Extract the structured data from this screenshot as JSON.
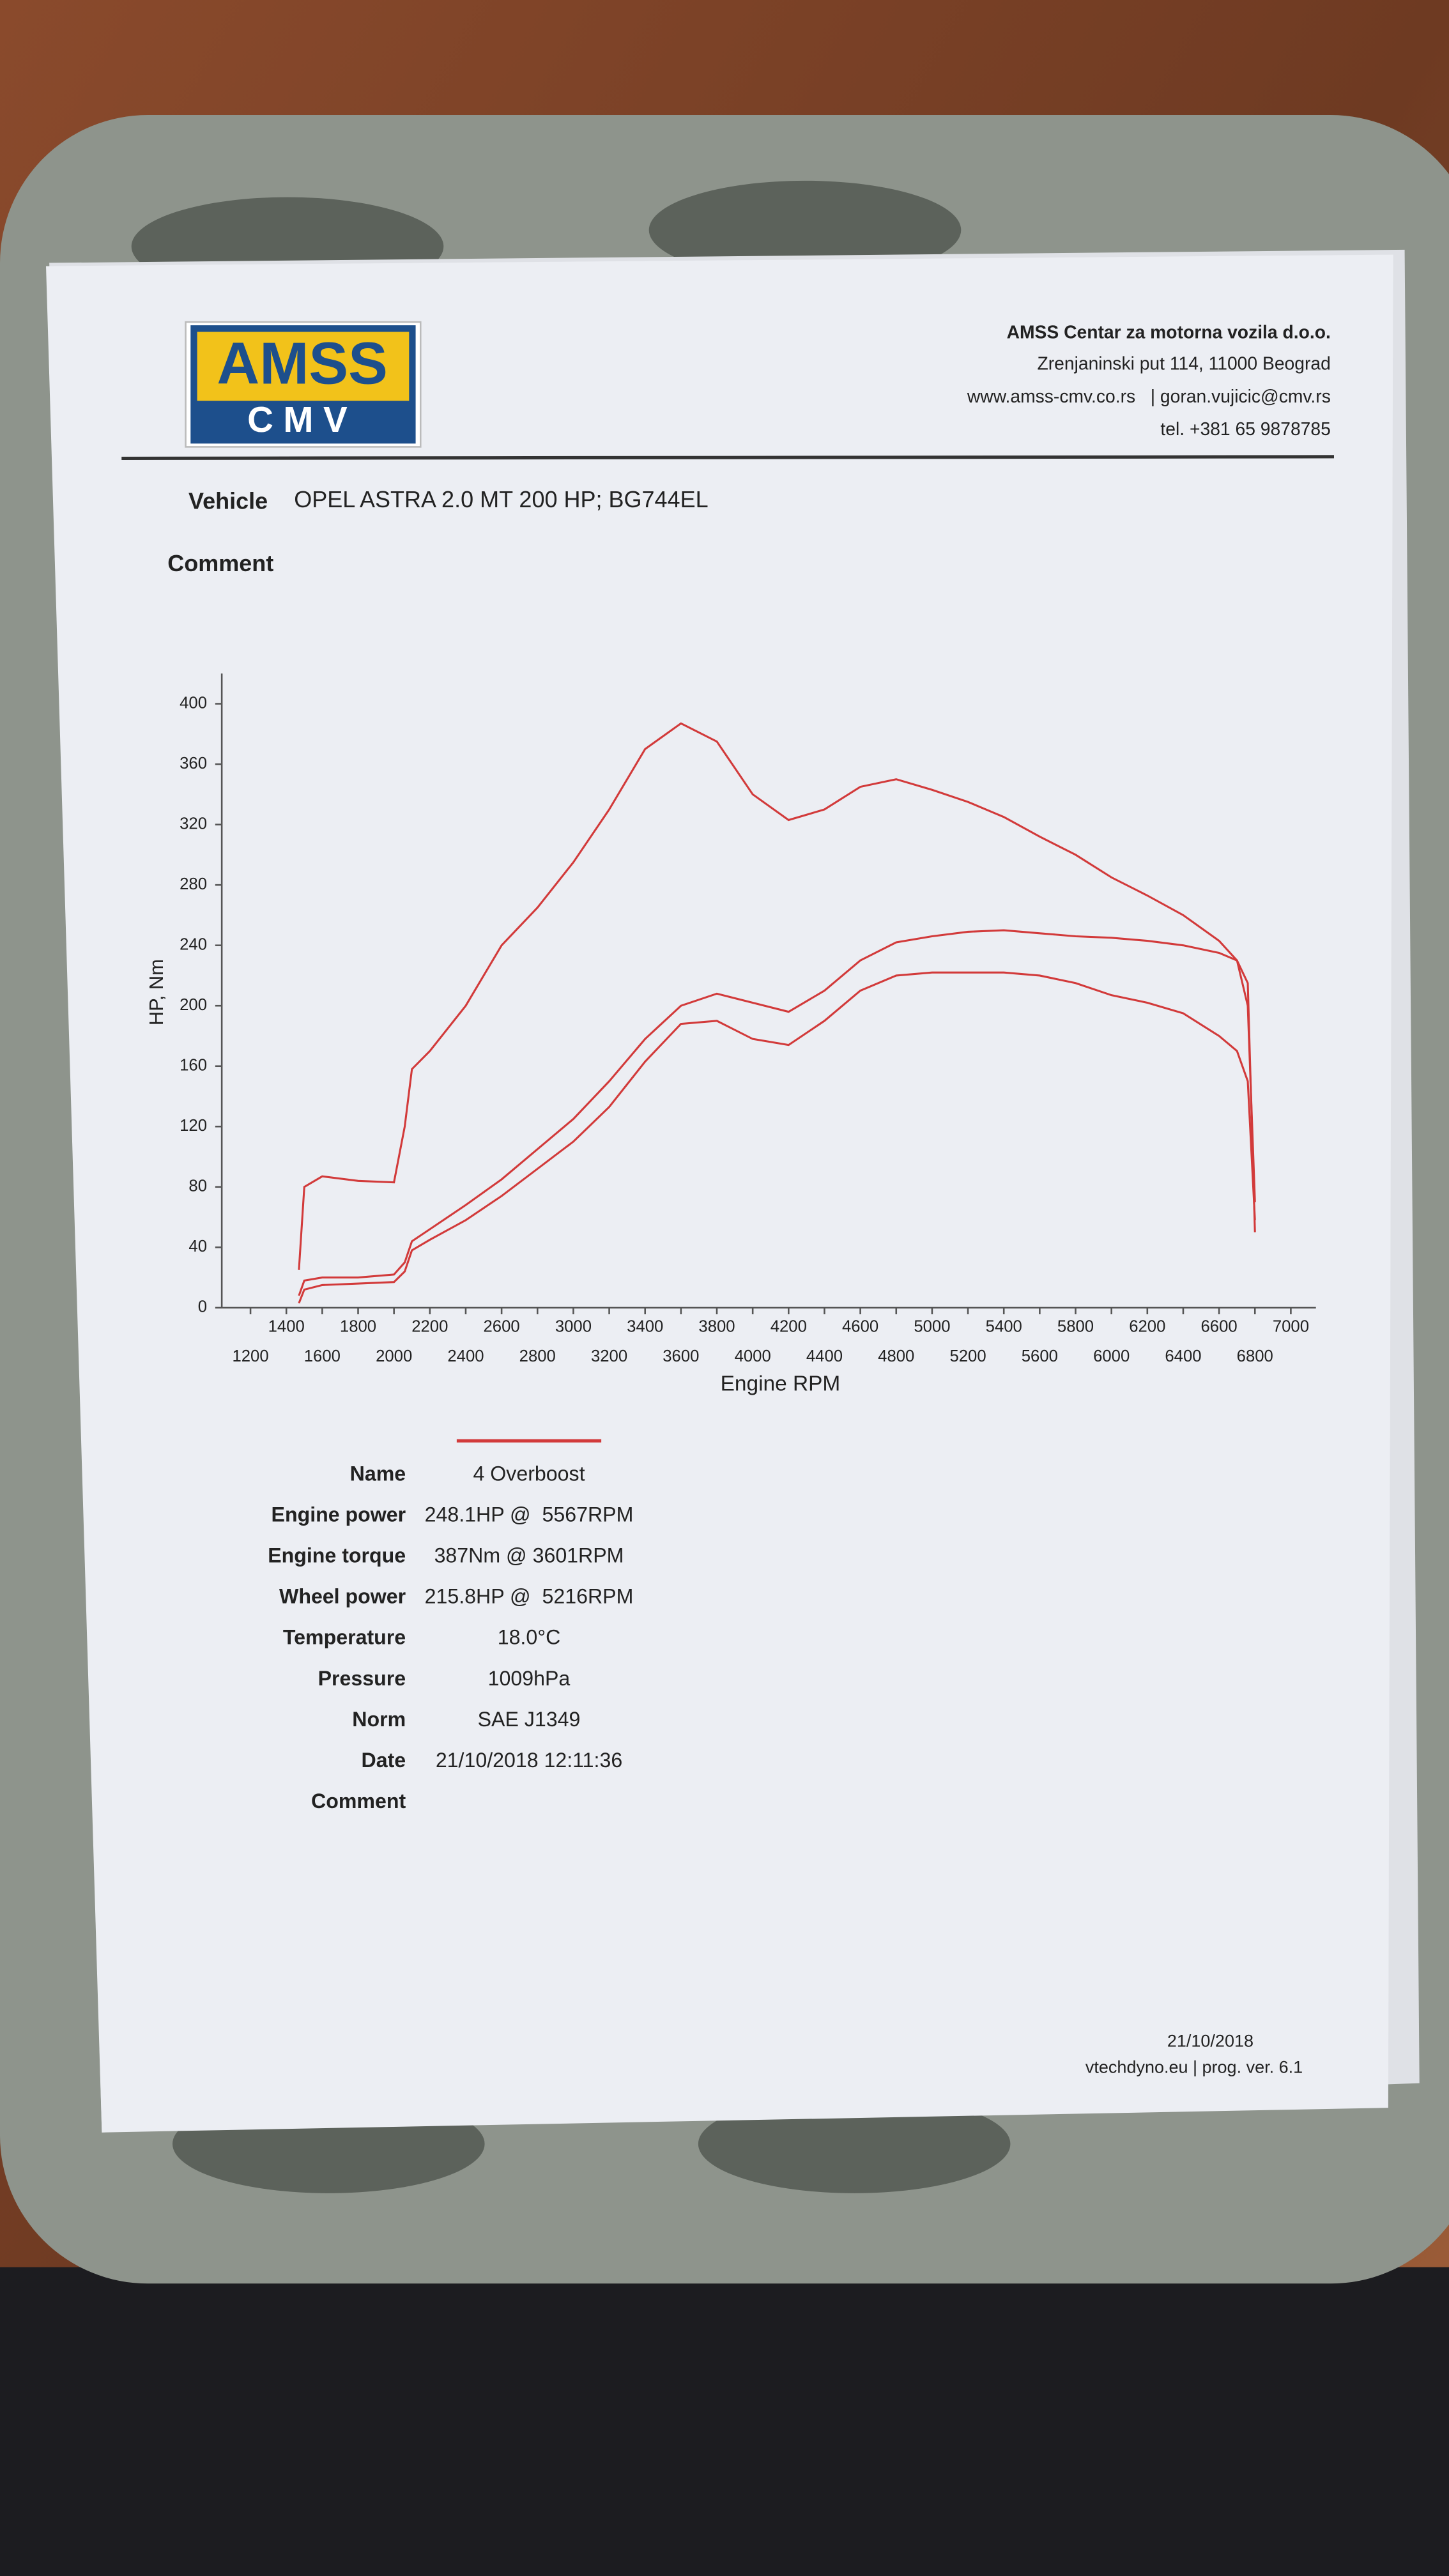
{
  "header": {
    "logo_top": "AMSS",
    "logo_bottom": "CMV",
    "company": "AMSS Centar za motorna vozila d.o.o.",
    "address": "Zrenjaninski put 114, 11000 Beograd",
    "contact": "www.amss-cmv.co.rs   | goran.vujicic@cmv.rs",
    "phone": "tel. +381 65 9878785"
  },
  "vehicle": {
    "label": "Vehicle",
    "value": "OPEL ASTRA 2.0 MT 200 HP; BG744EL"
  },
  "comment_label": "Comment",
  "chart_data": {
    "type": "line",
    "y_label": "HP, Nm",
    "x_label": "Engine RPM",
    "x": [
      1470,
      1500,
      1600,
      1800,
      2000,
      2060,
      2100,
      2200,
      2400,
      2600,
      2800,
      3000,
      3200,
      3400,
      3600,
      3800,
      4000,
      4200,
      4400,
      4600,
      4800,
      5000,
      5200,
      5400,
      5600,
      5800,
      6000,
      6200,
      6400,
      6600,
      6700,
      6760,
      6800
    ],
    "series": [
      {
        "color": "#d23a3a",
        "values": [
          25,
          80,
          87,
          84,
          83,
          120,
          158,
          170,
          200,
          240,
          265,
          295,
          330,
          370,
          387,
          375,
          340,
          323,
          330,
          345,
          350,
          343,
          335,
          325,
          312,
          300,
          285,
          273,
          260,
          243,
          230,
          200,
          70
        ]
      },
      {
        "color": "#d23a3a",
        "values": [
          8,
          18,
          20,
          20,
          22,
          30,
          44,
          52,
          68,
          85,
          105,
          125,
          150,
          178,
          200,
          208,
          202,
          196,
          210,
          230,
          242,
          246,
          249,
          250,
          248,
          246,
          245,
          243,
          240,
          235,
          230,
          215,
          50
        ]
      },
      {
        "color": "#d23a3a",
        "values": [
          3,
          12,
          15,
          16,
          17,
          24,
          38,
          45,
          58,
          74,
          92,
          110,
          133,
          163,
          188,
          190,
          178,
          174,
          190,
          210,
          220,
          222,
          222,
          222,
          220,
          215,
          207,
          202,
          195,
          180,
          170,
          150,
          58
        ]
      }
    ],
    "xlim": [
      1040,
      7140
    ],
    "ylim": [
      0,
      420
    ],
    "xticks": [
      1200,
      1400,
      1600,
      1800,
      2000,
      2200,
      2400,
      2600,
      2800,
      3000,
      3200,
      3400,
      3600,
      3800,
      4000,
      4200,
      4400,
      4600,
      4800,
      5000,
      5200,
      5400,
      5600,
      5800,
      6000,
      6200,
      6400,
      6600,
      6800,
      7000
    ],
    "yticks": [
      0,
      40,
      80,
      120,
      160,
      200,
      240,
      280,
      320,
      360,
      400
    ]
  },
  "details": [
    {
      "label": "Name",
      "value": "4 Overboost"
    },
    {
      "label": "Engine power",
      "value": "248.1HP @  5567RPM"
    },
    {
      "label": "Engine torque",
      "value": "387Nm @ 3601RPM"
    },
    {
      "label": "Wheel power",
      "value": "215.8HP @  5216RPM"
    },
    {
      "label": "Temperature",
      "value": "18.0°C"
    },
    {
      "label": "Pressure",
      "value": "1009hPa"
    },
    {
      "label": "Norm",
      "value": "SAE J1349"
    },
    {
      "label": "Date",
      "value": "21/10/2018 12:11:36"
    },
    {
      "label": "Comment"
    }
  ],
  "footer": {
    "date": "21/10/2018",
    "credit": "vtechdyno.eu | prog. ver. 6.1"
  }
}
